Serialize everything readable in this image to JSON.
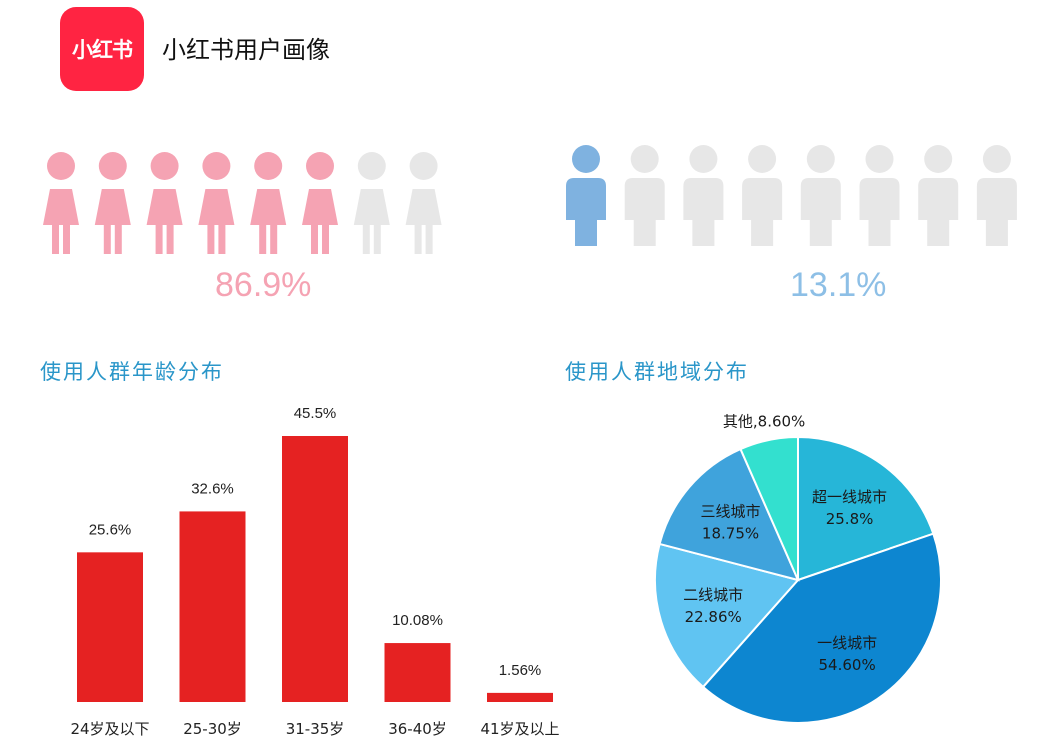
{
  "header": {
    "logo_text": "小红书",
    "title": "小红书用户画像"
  },
  "gender": {
    "female": {
      "percent_label": "86.9%",
      "share": 0.869,
      "icons_filled": 6,
      "icons_total": 8,
      "color": "#f5a3b3",
      "empty_color": "#e7e7e7"
    },
    "male": {
      "percent_label": "13.1%",
      "share": 0.131,
      "icons_filled": 1,
      "icons_total": 8,
      "color": "#7fb2e0",
      "empty_color": "#e7e7e7"
    }
  },
  "sections": {
    "age_title": "使用人群年龄分布",
    "region_title": "使用人群地域分布"
  },
  "chart_data": [
    {
      "type": "bar",
      "title": "使用人群年龄分布",
      "categories": [
        "24岁及以下",
        "25-30岁",
        "31-35岁",
        "36-40岁",
        "41岁及以上"
      ],
      "values": [
        25.6,
        32.6,
        45.5,
        10.08,
        1.56
      ],
      "data_labels": [
        "25.6%",
        "32.6%",
        "45.5%",
        "10.08%",
        "1.56%"
      ],
      "color": "#e52222",
      "ylim": [
        0,
        45.5
      ],
      "grid": false
    },
    {
      "type": "pie",
      "title": "使用人群地域分布",
      "slices": [
        {
          "label": "超一线城市",
          "value": 25.8,
          "value_label": "25.8%",
          "color": "#26b6d8"
        },
        {
          "label": "一线城市",
          "value": 54.6,
          "value_label": "54.60%",
          "color": "#0d86d0"
        },
        {
          "label": "二线城市",
          "value": 22.86,
          "value_label": "22.86%",
          "color": "#60c4f2"
        },
        {
          "label": "三线城市",
          "value": 18.75,
          "value_label": "18.75%",
          "color": "#3fa3dc"
        },
        {
          "label": "其他",
          "value": 8.6,
          "value_label": "8.60%",
          "color": "#33e0cf"
        }
      ]
    }
  ]
}
